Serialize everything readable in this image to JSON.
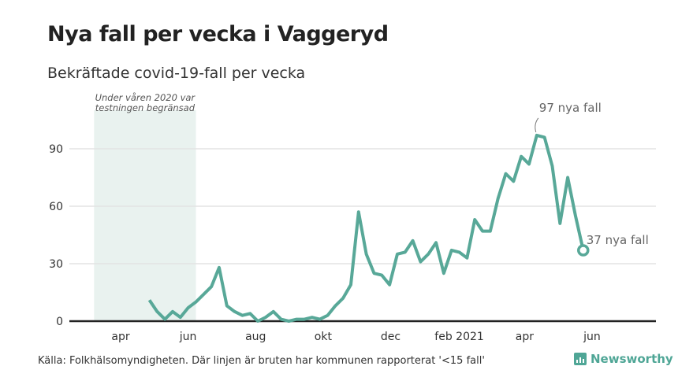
{
  "chart_data": {
    "type": "line",
    "title": "Nya fall per vecka i Vaggeryd",
    "subtitle": "Bekräftade covid-19-fall per vecka",
    "xlabel": "",
    "ylabel": "",
    "ylim": [
      0,
      110
    ],
    "yticks": [
      0,
      30,
      60,
      90
    ],
    "xlim": [
      "2020-03-01",
      "2021-06-25"
    ],
    "xticks": [
      {
        "date": "2020-04-01",
        "label": "apr"
      },
      {
        "date": "2020-06-01",
        "label": "jun"
      },
      {
        "date": "2020-08-01",
        "label": "aug"
      },
      {
        "date": "2020-10-01",
        "label": "okt"
      },
      {
        "date": "2020-12-01",
        "label": "dec"
      },
      {
        "date": "2021-02-01",
        "label": "feb 2021"
      },
      {
        "date": "2021-04-01",
        "label": "apr"
      },
      {
        "date": "2021-06-01",
        "label": "jun"
      }
    ],
    "series": [
      {
        "name": "Nya fall",
        "start_date": "2020-04-27",
        "interval_days": 7,
        "values": [
          11,
          5,
          1,
          5,
          2,
          7,
          10,
          14,
          18,
          28,
          8,
          5,
          3,
          4,
          0,
          2,
          5,
          1,
          0,
          1,
          1,
          2,
          1,
          3,
          8,
          12,
          19,
          57,
          35,
          25,
          24,
          19,
          35,
          36,
          42,
          31,
          35,
          41,
          25,
          37,
          36,
          33,
          53,
          47,
          47,
          64,
          77,
          73,
          86,
          82,
          97,
          96,
          81,
          51,
          75,
          55,
          37
        ]
      }
    ],
    "shaded_region": {
      "from": "2020-03-08",
      "to": "2020-06-08",
      "label_lines": [
        "Under våren 2020 var",
        "testningen begränsad"
      ]
    },
    "annotations": [
      {
        "text": "97 nya fall",
        "target": "peak"
      },
      {
        "text": "37 nya fall",
        "target": "last"
      }
    ],
    "grid": true,
    "colors": {
      "line": "#58a898",
      "shade": "#e9f2ef",
      "grid": "#e3e3e3",
      "axis": "#222222"
    }
  },
  "footer": {
    "source": "Källa: Folkhälsomyndigheten. Där linjen är bruten har kommunen rapporterat '<15 fall'",
    "brand": "Newsworthy"
  }
}
